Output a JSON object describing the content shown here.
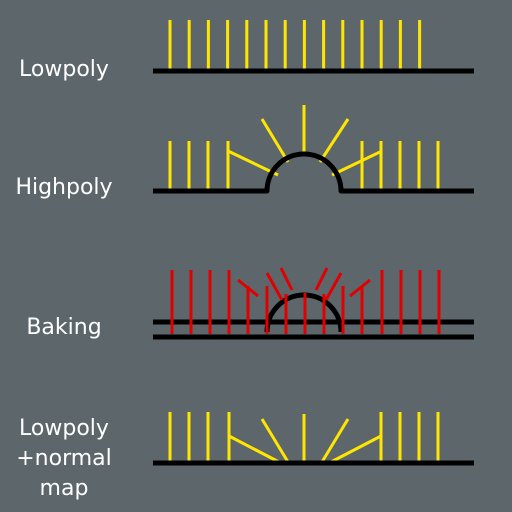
{
  "labels": {
    "lowpoly": "Lowpoly",
    "highpoly": "Highpoly",
    "baking": "Baking",
    "normal_map": [
      "Lowpoly",
      "+normal",
      "map"
    ]
  },
  "colors": {
    "background": "#5d676b",
    "surface": "#000000",
    "normal": "#ffe600",
    "ray": "#e00000",
    "text": "#ffffff"
  }
}
